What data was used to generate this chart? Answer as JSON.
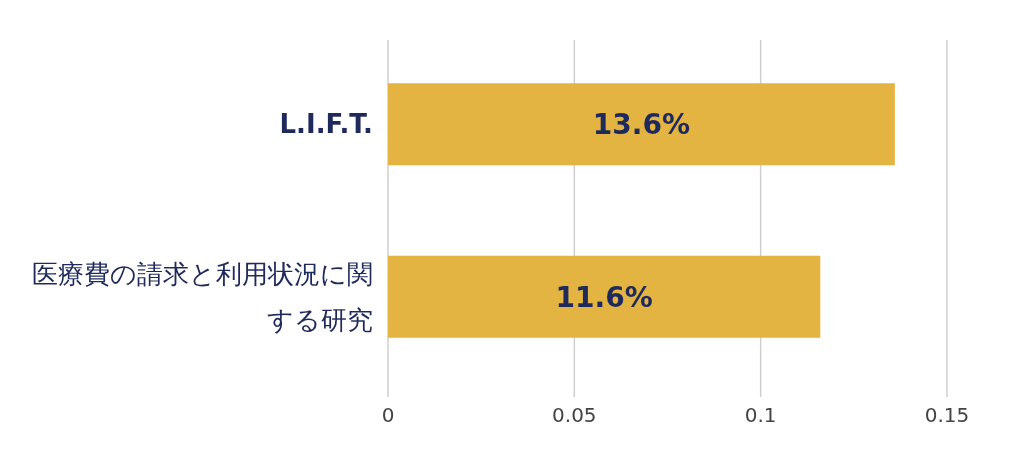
{
  "chart_data": {
    "type": "bar",
    "orientation": "horizontal",
    "categories": [
      "L.I.F.T.",
      "医療費の請求と利用状況に関する研究"
    ],
    "values": [
      0.136,
      0.116
    ],
    "value_labels": [
      "13.6%",
      "11.6%"
    ],
    "color": "#e3b442",
    "xlim": [
      0,
      0.15
    ],
    "xticks": [
      0,
      0.05,
      0.1,
      0.15
    ],
    "grid": "x"
  }
}
